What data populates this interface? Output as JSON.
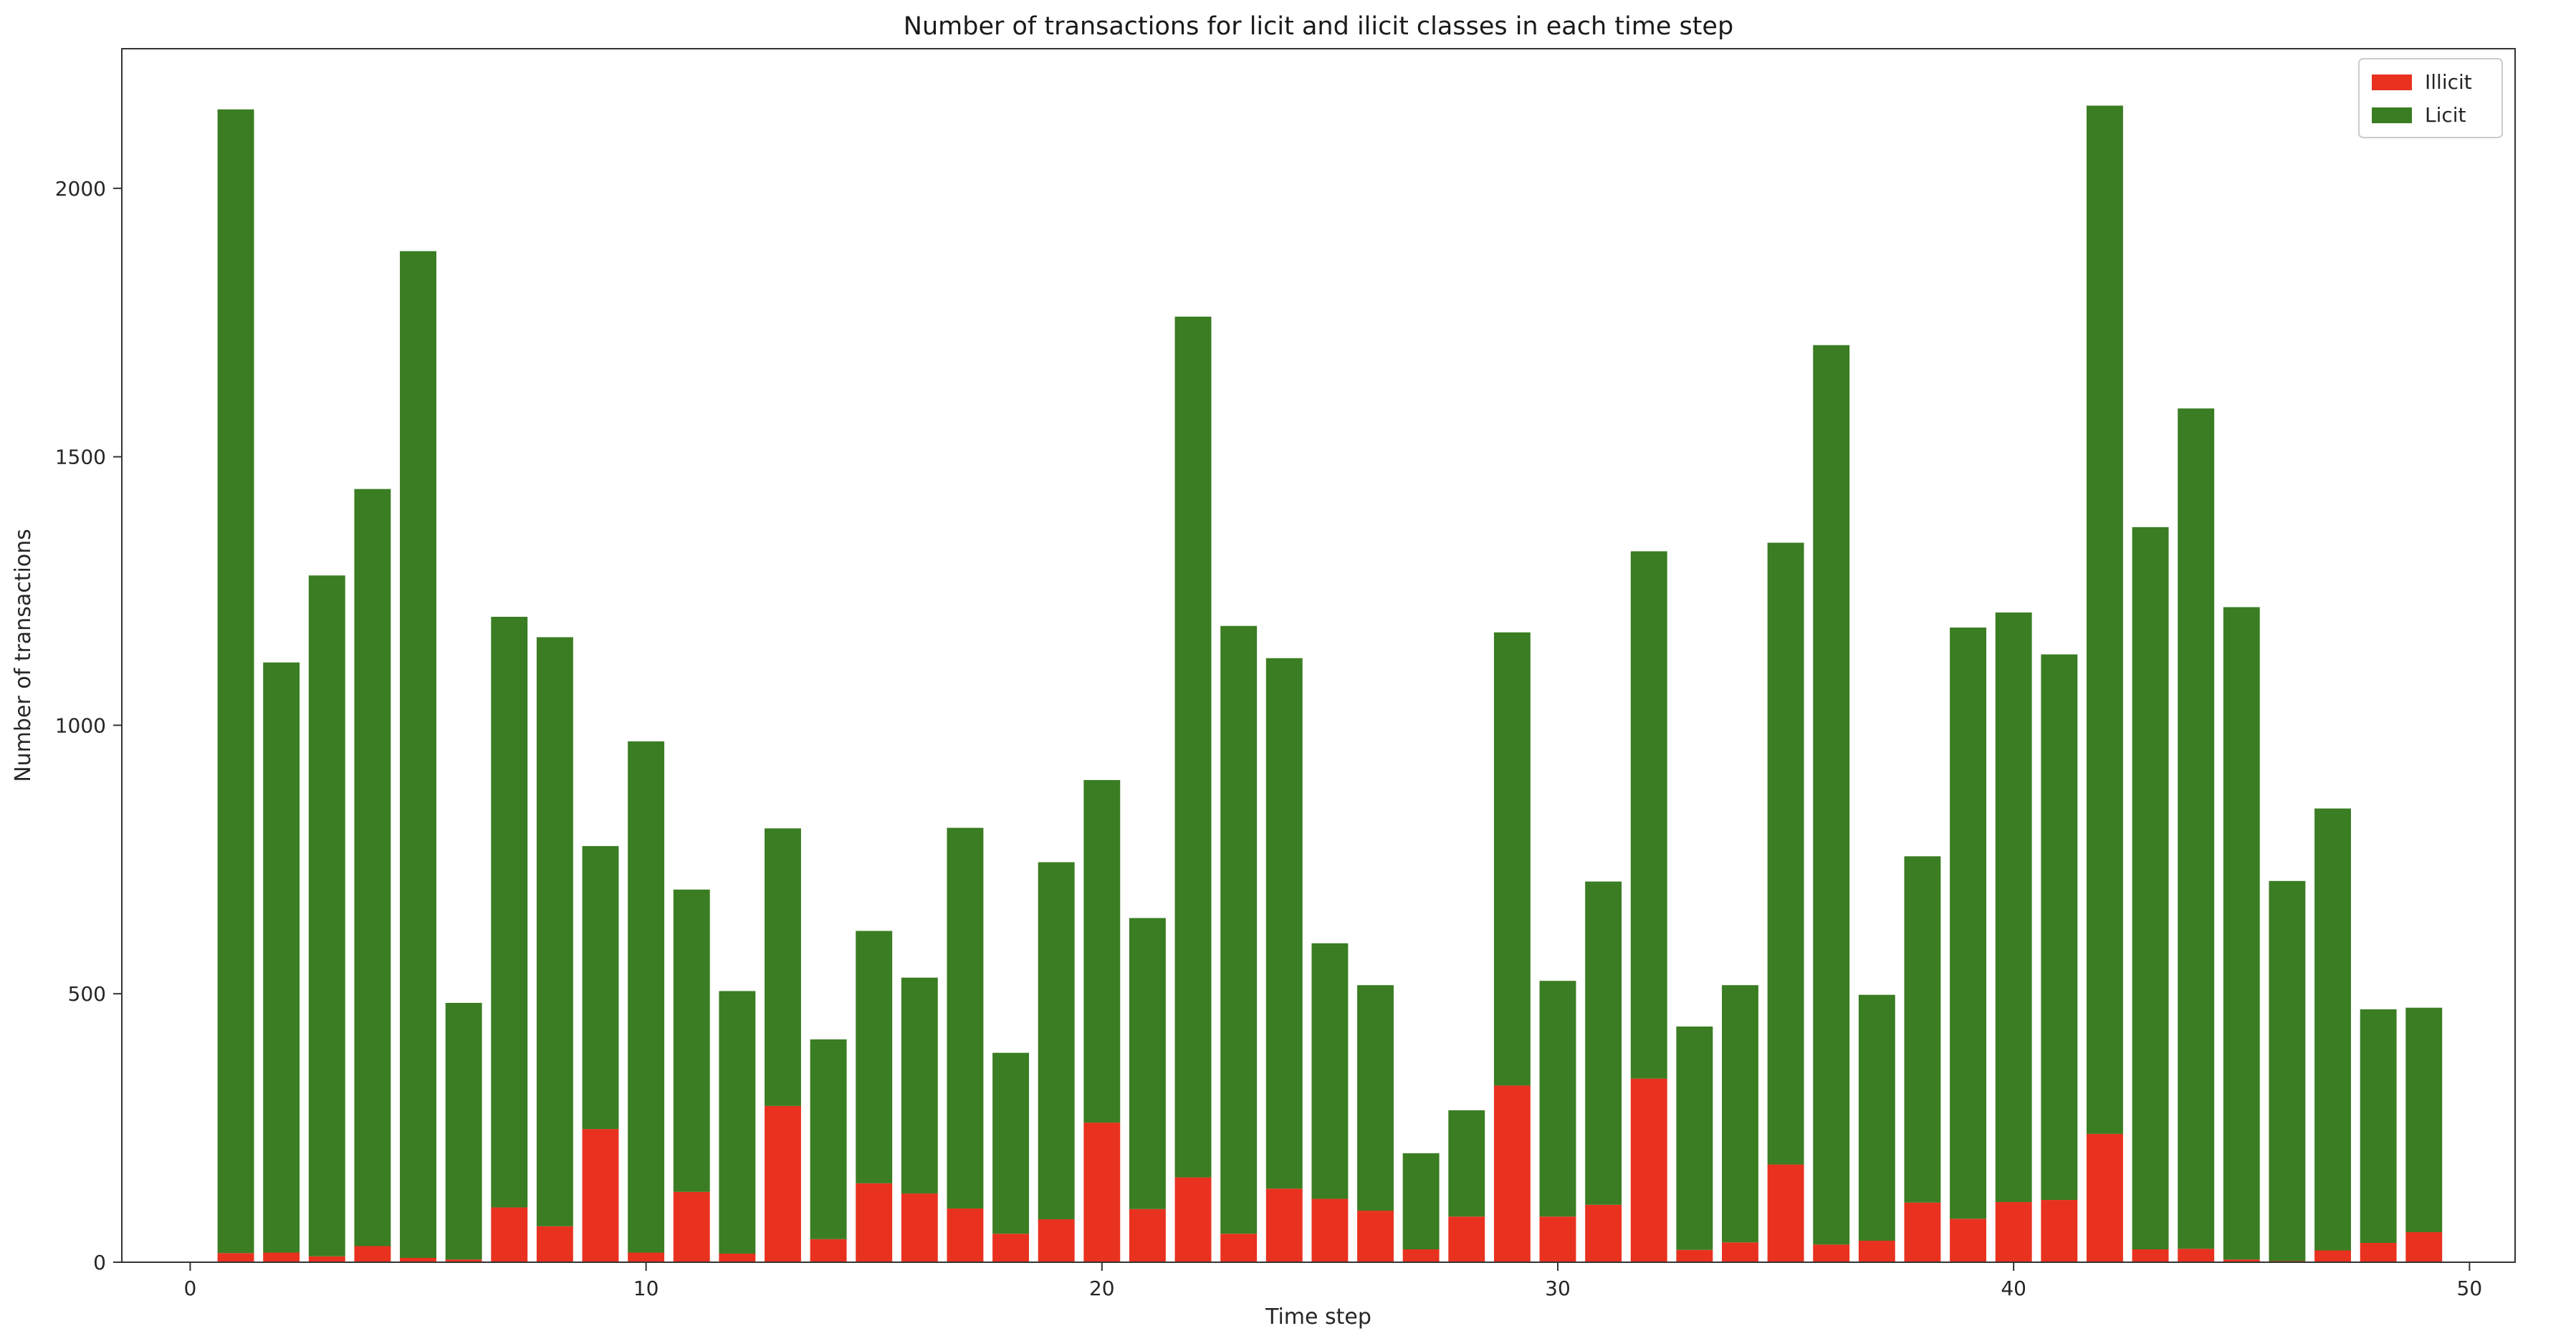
{
  "chart_data": {
    "type": "bar",
    "stacked": true,
    "title": "Number of transactions for licit and ilicit classes in each time step",
    "xlabel": "Time step",
    "ylabel": "Number of transactions",
    "xlim": [
      -1.5,
      51.0
    ],
    "ylim": [
      0,
      2260
    ],
    "x_ticks": [
      0,
      10,
      20,
      30,
      40,
      50
    ],
    "y_ticks": [
      0,
      500,
      1000,
      1500,
      2000
    ],
    "x_tick_labels": [
      "0",
      "10",
      "20",
      "30",
      "40",
      "50"
    ],
    "y_tick_labels": [
      "0",
      "500",
      "1000",
      "1500",
      "2000"
    ],
    "grid": false,
    "legend_position": "top-right",
    "x": [
      1,
      2,
      3,
      4,
      5,
      6,
      7,
      8,
      9,
      10,
      11,
      12,
      13,
      14,
      15,
      16,
      17,
      18,
      19,
      20,
      21,
      22,
      23,
      24,
      25,
      26,
      27,
      28,
      29,
      30,
      31,
      32,
      33,
      34,
      35,
      36,
      37,
      38,
      39,
      40,
      41,
      42,
      43,
      44,
      45,
      46,
      47,
      48,
      49
    ],
    "series": [
      {
        "name": "Illicit",
        "color": "#e8321f",
        "values": [
          17,
          18,
          11,
          30,
          8,
          5,
          102,
          67,
          248,
          18,
          131,
          16,
          291,
          43,
          147,
          128,
          100,
          53,
          80,
          260,
          99,
          158,
          53,
          137,
          118,
          96,
          24,
          85,
          329,
          85,
          107,
          342,
          23,
          37,
          182,
          33,
          40,
          111,
          81,
          112,
          116,
          239,
          24,
          25,
          5,
          2,
          22,
          36,
          56
        ]
      },
      {
        "name": "Licit",
        "color": "#3a7d22",
        "values": [
          2130,
          1099,
          1268,
          1410,
          1875,
          478,
          1100,
          1097,
          527,
          952,
          563,
          489,
          517,
          372,
          470,
          402,
          709,
          337,
          665,
          638,
          542,
          1603,
          1132,
          988,
          476,
          420,
          179,
          198,
          844,
          439,
          602,
          982,
          416,
          479,
          1158,
          1675,
          458,
          645,
          1101,
          1098,
          1016,
          1915,
          1345,
          1565,
          1215,
          708,
          823,
          435,
          418
        ]
      }
    ]
  }
}
